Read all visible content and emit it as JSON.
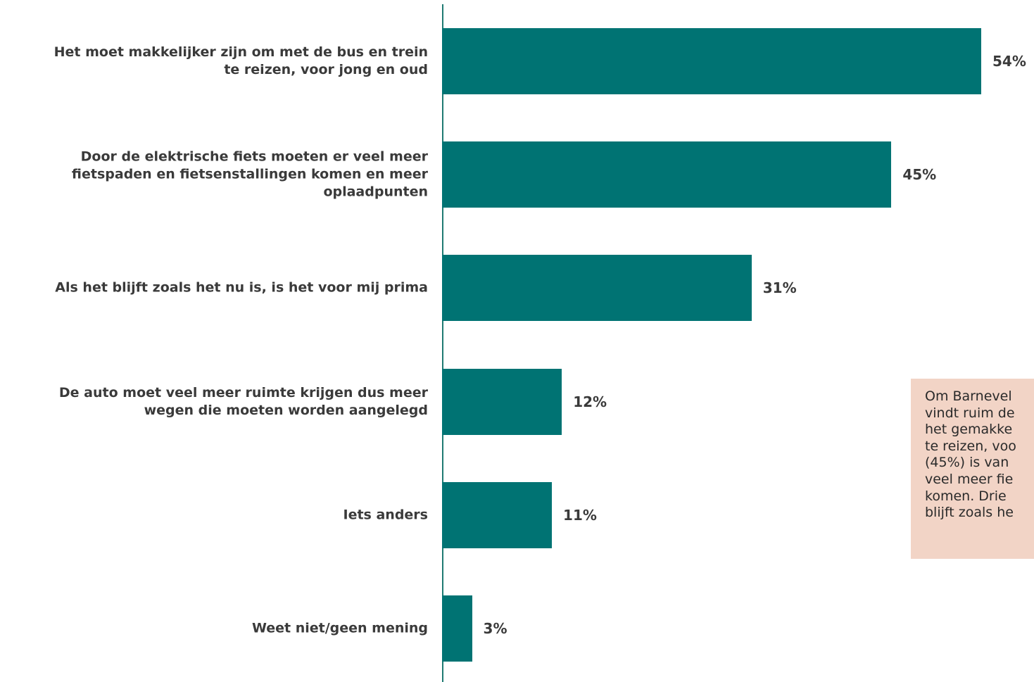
{
  "colors": {
    "bar": "#007373",
    "axis": "#1f7a72",
    "note_bg": "#f2d4c6",
    "text": "#3a3a3a"
  },
  "chart_data": {
    "type": "bar",
    "orientation": "horizontal",
    "categories": [
      "Het moet makkelijker zijn om met de bus en trein te reizen, voor jong en oud",
      "Door de elektrische fiets moeten er veel meer fietspaden en fietsenstallingen komen en meer oplaadpunten",
      "Als het blijft zoals het nu is, is het voor mij prima",
      "De auto moet veel meer ruimte krijgen dus meer wegen die moeten worden aangelegd",
      "Iets anders",
      "Weet niet/geen mening"
    ],
    "category_lines": [
      [
        "Het moet makkelijker zijn om met de bus en trein",
        "te reizen, voor jong en oud"
      ],
      [
        "Door de elektrische fiets moeten er veel meer",
        "fietspaden en fietsenstallingen komen en meer",
        "oplaadpunten"
      ],
      [
        "Als het blijft zoals het nu is, is het voor mij prima"
      ],
      [
        "De auto moet veel meer ruimte krijgen dus meer",
        "wegen die moeten worden aangelegd"
      ],
      [
        "Iets anders"
      ],
      [
        "Weet niet/geen mening"
      ]
    ],
    "values": [
      54,
      45,
      31,
      12,
      11,
      3
    ],
    "value_labels": [
      "54%",
      "45%",
      "31%",
      "12%",
      "11%",
      "3%"
    ],
    "xlim": [
      0,
      54
    ],
    "grid": false,
    "legend": "none"
  },
  "note": {
    "lines": [
      "Om Barnevel",
      "vindt ruim de",
      "het gemakke",
      "te reizen, voo",
      "(45%) is van",
      "veel meer fie",
      "komen. Drie",
      "blijft zoals he"
    ]
  }
}
